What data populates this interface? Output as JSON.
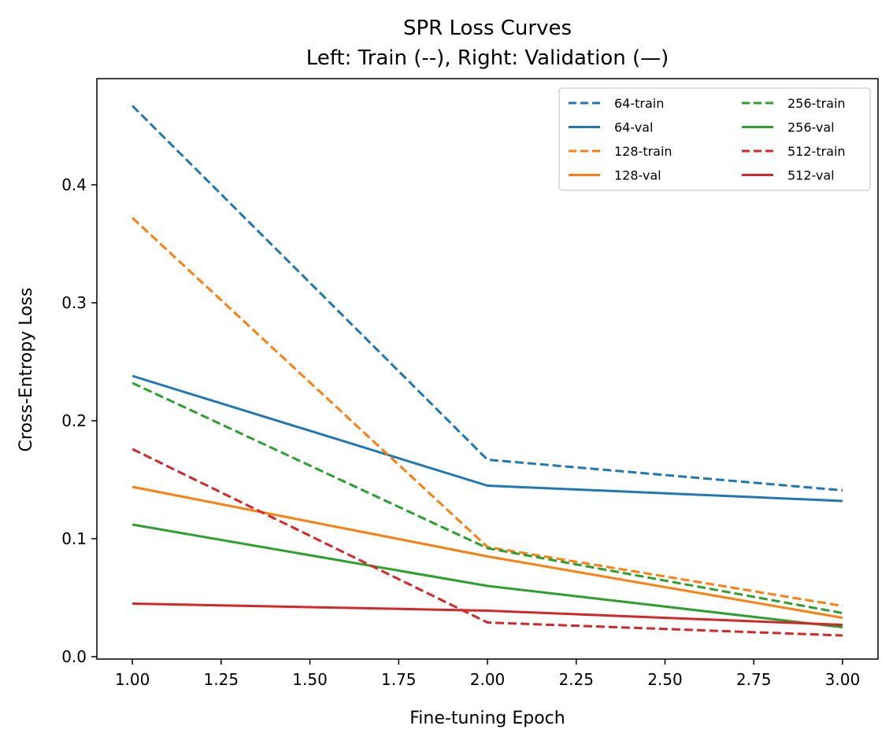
{
  "chart_data": {
    "type": "line",
    "title": "SPR Loss Curves",
    "subtitle": "Left: Train (--), Right: Validation (—)",
    "xlabel": "Fine-tuning Epoch",
    "ylabel": "Cross-Entropy Loss",
    "x": [
      1,
      2,
      3
    ],
    "xlim": [
      0.9,
      3.1
    ],
    "ylim": [
      -0.002,
      0.49
    ],
    "xticks": [
      "1.00",
      "1.25",
      "1.50",
      "1.75",
      "2.00",
      "2.25",
      "2.50",
      "2.75",
      "3.00"
    ],
    "yticks": [
      "0.0",
      "0.1",
      "0.2",
      "0.3",
      "0.4"
    ],
    "grid": false,
    "legend_position": "top-right",
    "series": [
      {
        "name": "64-train",
        "values": [
          0.467,
          0.167,
          0.141
        ],
        "color": "#1f77b4",
        "dash": true
      },
      {
        "name": "64-val",
        "values": [
          0.238,
          0.145,
          0.132
        ],
        "color": "#1f77b4",
        "dash": false
      },
      {
        "name": "128-train",
        "values": [
          0.372,
          0.093,
          0.043
        ],
        "color": "#ff7f0e",
        "dash": true
      },
      {
        "name": "128-val",
        "values": [
          0.144,
          0.085,
          0.033
        ],
        "color": "#ff7f0e",
        "dash": false
      },
      {
        "name": "256-train",
        "values": [
          0.232,
          0.092,
          0.037
        ],
        "color": "#2ca02c",
        "dash": true
      },
      {
        "name": "256-val",
        "values": [
          0.112,
          0.06,
          0.025
        ],
        "color": "#2ca02c",
        "dash": false
      },
      {
        "name": "512-train",
        "values": [
          0.176,
          0.029,
          0.018
        ],
        "color": "#d62728",
        "dash": true
      },
      {
        "name": "512-val",
        "values": [
          0.045,
          0.039,
          0.027
        ],
        "color": "#d62728",
        "dash": false
      }
    ]
  }
}
